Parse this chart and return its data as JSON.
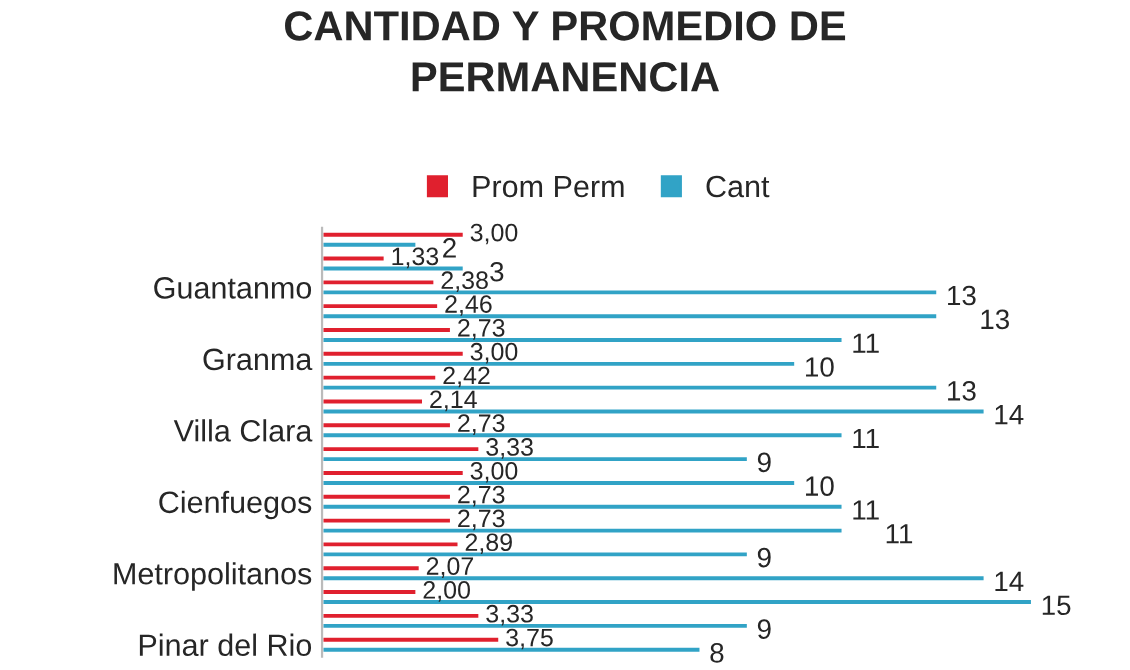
{
  "chart_data": {
    "type": "bar",
    "orientation": "horizontal",
    "title": "CANTIDAD Y PROMEDIO DE\nPERMANENCIA",
    "categories": [
      null,
      null,
      "Guantanmo",
      null,
      null,
      "Granma",
      null,
      null,
      "Villa Clara",
      null,
      null,
      "Cienfuegos",
      null,
      null,
      "Metropolitanos",
      null,
      null,
      "Pinar del Rio"
    ],
    "series": [
      {
        "name": "Prom Perm",
        "color": "#e0202e",
        "values": [
          3.0,
          1.33,
          2.38,
          2.46,
          2.73,
          3.0,
          2.42,
          2.14,
          2.73,
          3.33,
          3.0,
          2.73,
          2.73,
          2.89,
          2.07,
          2.0,
          3.33,
          3.75
        ],
        "value_labels": [
          "3,00",
          "1,33",
          "2,38",
          "2,46",
          "2,73",
          "3,00",
          "2,42",
          "2,14",
          "2,73",
          "3,33",
          "3,00",
          "2,73",
          "2,73",
          "2,89",
          "2,07",
          "2,00",
          "3,33",
          "3,75"
        ]
      },
      {
        "name": "Cant",
        "color": "#31a3c6",
        "values": [
          2,
          3,
          13,
          13,
          11,
          10,
          13,
          14,
          11,
          9,
          10,
          11,
          11,
          9,
          14,
          15,
          9,
          8
        ],
        "value_labels": [
          "2",
          "3",
          "13",
          "13",
          "11",
          "10",
          "13",
          "14",
          "11",
          "9",
          "10",
          "11",
          "11",
          "9",
          "14",
          "15",
          "9",
          "8"
        ]
      }
    ],
    "tick_labels": "y",
    "legend": "top",
    "grid": false
  }
}
